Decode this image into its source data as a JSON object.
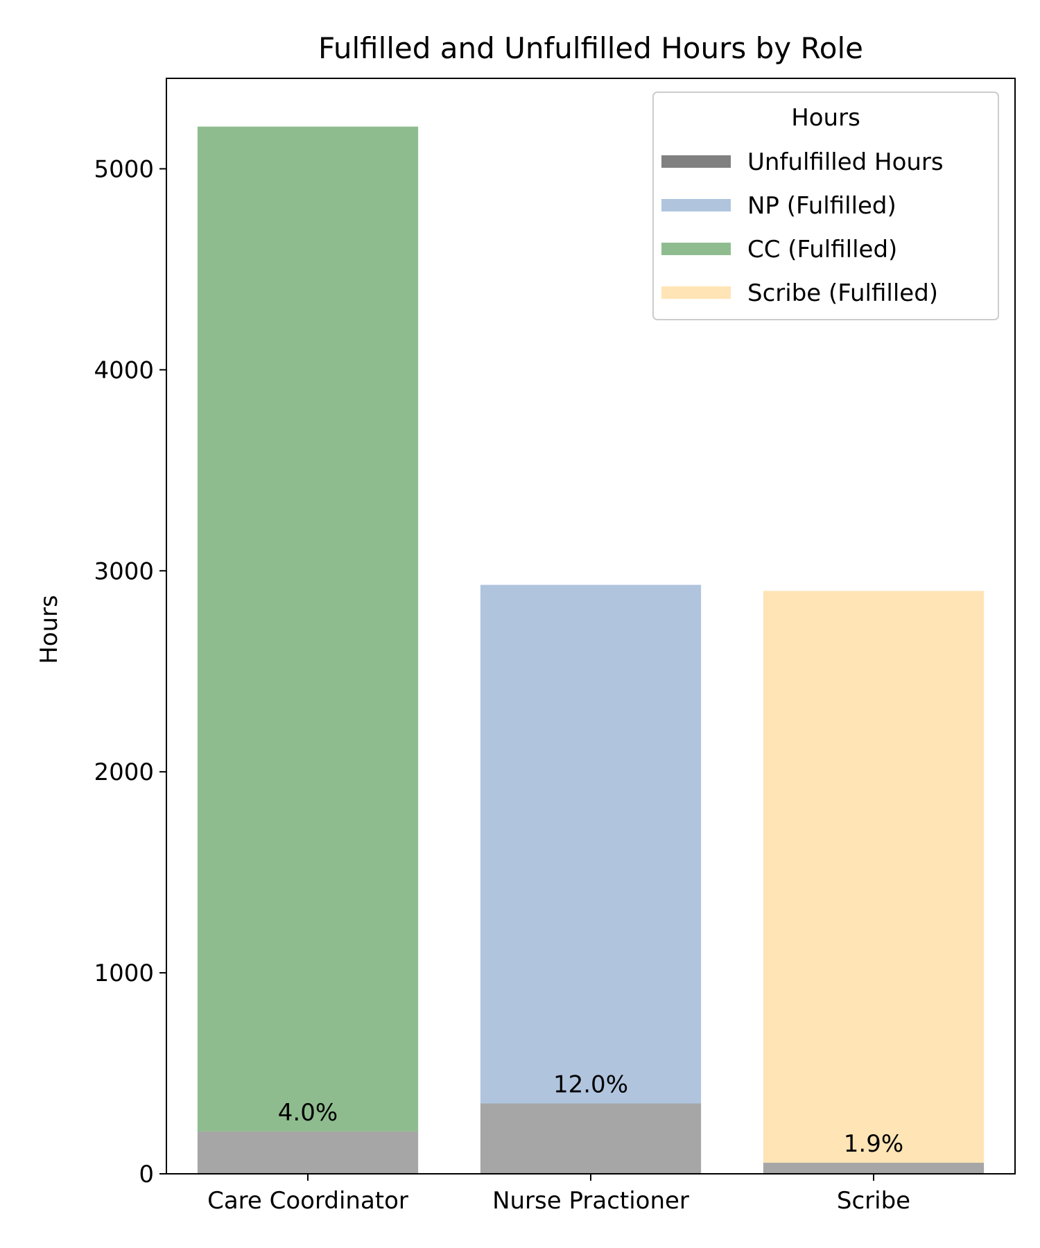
{
  "chart_data": {
    "type": "bar",
    "title": "Fulfilled and Unfulfilled Hours by Role",
    "xlabel": "",
    "ylabel": "Hours",
    "ylim": [
      0,
      5450
    ],
    "yticks": [
      "0",
      "1000",
      "2000",
      "3000",
      "4000",
      "5000"
    ],
    "categories": [
      "Care Coordinator",
      "Nurse Practioner",
      "Scribe"
    ],
    "stacked": true,
    "series": [
      {
        "name": "Unfulfilled Hours",
        "color": "#808080",
        "values": [
          210,
          350,
          55
        ]
      },
      {
        "name": "NP (Fulfilled)",
        "color": "#b0c4de",
        "values": [
          0,
          2580,
          0
        ]
      },
      {
        "name": "CC (Fulfilled)",
        "color": "#8fbc8f",
        "values": [
          5000,
          0,
          0
        ]
      },
      {
        "name": "Scribe (Fulfilled)",
        "color": "#ffe4b5",
        "values": [
          0,
          0,
          2845
        ]
      }
    ],
    "bar_labels": [
      "4.0%",
      "12.0%",
      "1.9%"
    ],
    "legend": {
      "title": "Hours",
      "position": "top-right"
    },
    "grid": false
  }
}
